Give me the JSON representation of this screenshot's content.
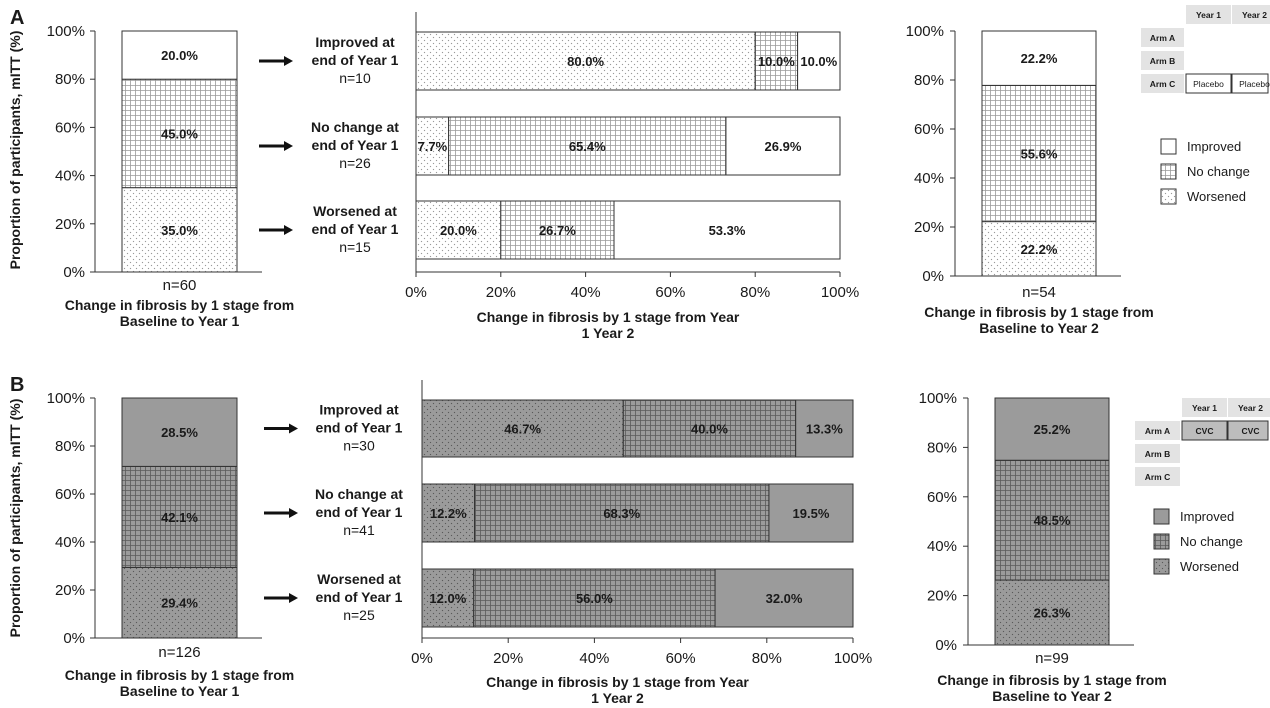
{
  "chart_data": [
    {
      "panel": "A",
      "colors": {
        "improved": "#ffffff",
        "no_change": "#ffffff",
        "worsened": "#ffffff",
        "pattern_stroke": "#9a9a9a"
      },
      "y_axis_label": "Proportion of participants, mITT (%)",
      "left": {
        "type": "bar",
        "stacked": true,
        "n_label": "n=60",
        "xlabel_lines": [
          "Change in fibrosis by 1 stage from",
          "Baseline to Year 1"
        ],
        "ylim": [
          0,
          100
        ],
        "yticks": [
          "0%",
          "20%",
          "40%",
          "60%",
          "80%",
          "100%"
        ],
        "segments": [
          {
            "category": "Worsened",
            "value": 35.0,
            "label": "35.0%"
          },
          {
            "category": "No change",
            "value": 45.0,
            "label": "45.0%"
          },
          {
            "category": "Improved",
            "value": 20.0,
            "label": "20.0%"
          }
        ]
      },
      "middle": {
        "type": "bar",
        "orientation": "horizontal",
        "stacked": true,
        "xlim": [
          0,
          100
        ],
        "xticks": [
          "0%",
          "20%",
          "40%",
          "60%",
          "80%",
          "100%"
        ],
        "xlabel_lines": [
          "Change in fibrosis by 1 stage from Year",
          "1 Year 2"
        ],
        "rows": [
          {
            "label_lines": [
              "Improved at",
              "end of Year 1"
            ],
            "n_label": "n=10",
            "segments": [
              {
                "category": "Worsened",
                "value": 80.0,
                "label": "80.0%"
              },
              {
                "category": "No change",
                "value": 10.0,
                "label": "10.0%"
              },
              {
                "category": "Improved",
                "value": 10.0,
                "label": "10.0%"
              }
            ]
          },
          {
            "label_lines": [
              "No change at",
              "end of Year 1"
            ],
            "n_label": "n=26",
            "segments": [
              {
                "category": "Worsened",
                "value": 7.7,
                "label": "7.7%"
              },
              {
                "category": "No change",
                "value": 65.4,
                "label": "65.4%"
              },
              {
                "category": "Improved",
                "value": 26.9,
                "label": "26.9%"
              }
            ]
          },
          {
            "label_lines": [
              "Worsened at",
              "end of Year 1"
            ],
            "n_label": "n=15",
            "segments": [
              {
                "category": "Worsened",
                "value": 20.0,
                "label": "20.0%"
              },
              {
                "category": "No change",
                "value": 26.7,
                "label": "26.7%"
              },
              {
                "category": "Improved",
                "value": 53.3,
                "label": "53.3%"
              }
            ]
          }
        ]
      },
      "right": {
        "type": "bar",
        "stacked": true,
        "n_label": "n=54",
        "xlabel_lines": [
          "Change in fibrosis by 1 stage from",
          "Baseline to Year 2"
        ],
        "ylim": [
          0,
          100
        ],
        "yticks": [
          "0%",
          "20%",
          "40%",
          "60%",
          "80%",
          "100%"
        ],
        "segments": [
          {
            "category": "Worsened",
            "value": 22.2,
            "label": "22.2%"
          },
          {
            "category": "No change",
            "value": 55.6,
            "label": "55.6%"
          },
          {
            "category": "Improved",
            "value": 22.2,
            "label": "22.2%"
          }
        ]
      },
      "arm_table": {
        "headers": [
          "Year 1",
          "Year 2"
        ],
        "arms": [
          {
            "label": "Arm A",
            "cells": [
              "",
              ""
            ]
          },
          {
            "label": "Arm B",
            "cells": [
              "",
              ""
            ]
          },
          {
            "label": "Arm C",
            "cells": [
              "Placebo",
              "Placebo"
            ]
          }
        ]
      },
      "legend": [
        {
          "key": "improved",
          "label": "Improved"
        },
        {
          "key": "no_change",
          "label": "No change"
        },
        {
          "key": "worsened",
          "label": "Worsened"
        }
      ]
    },
    {
      "panel": "B",
      "colors": {
        "improved": "#9b9b9b",
        "no_change": "#9b9b9b",
        "worsened": "#9b9b9b",
        "pattern_stroke": "#5a5a5a"
      },
      "y_axis_label": "Proportion of participants, mITT (%)",
      "left": {
        "type": "bar",
        "stacked": true,
        "n_label": "n=126",
        "xlabel_lines": [
          "Change in fibrosis by 1 stage from",
          "Baseline to Year 1"
        ],
        "ylim": [
          0,
          100
        ],
        "yticks": [
          "0%",
          "20%",
          "40%",
          "60%",
          "80%",
          "100%"
        ],
        "segments": [
          {
            "category": "Worsened",
            "value": 29.4,
            "label": "29.4%"
          },
          {
            "category": "No change",
            "value": 42.1,
            "label": "42.1%"
          },
          {
            "category": "Improved",
            "value": 28.5,
            "label": "28.5%"
          }
        ]
      },
      "middle": {
        "type": "bar",
        "orientation": "horizontal",
        "stacked": true,
        "xlim": [
          0,
          100
        ],
        "xticks": [
          "0%",
          "20%",
          "40%",
          "60%",
          "80%",
          "100%"
        ],
        "xlabel_lines": [
          "Change in fibrosis by 1 stage from Year",
          "1 Year 2"
        ],
        "rows": [
          {
            "label_lines": [
              "Improved at",
              "end of Year 1"
            ],
            "n_label": "n=30",
            "segments": [
              {
                "category": "Worsened",
                "value": 46.7,
                "label": "46.7%"
              },
              {
                "category": "No change",
                "value": 40.0,
                "label": "40.0%"
              },
              {
                "category": "Improved",
                "value": 13.3,
                "label": "13.3%"
              }
            ]
          },
          {
            "label_lines": [
              "No change at",
              "end of Year 1"
            ],
            "n_label": "n=41",
            "segments": [
              {
                "category": "Worsened",
                "value": 12.2,
                "label": "12.2%"
              },
              {
                "category": "No change",
                "value": 68.3,
                "label": "68.3%"
              },
              {
                "category": "Improved",
                "value": 19.5,
                "label": "19.5%"
              }
            ]
          },
          {
            "label_lines": [
              "Worsened at",
              "end of Year 1"
            ],
            "n_label": "n=25",
            "segments": [
              {
                "category": "Worsened",
                "value": 12.0,
                "label": "12.0%"
              },
              {
                "category": "No change",
                "value": 56.0,
                "label": "56.0%"
              },
              {
                "category": "Improved",
                "value": 32.0,
                "label": "32.0%"
              }
            ]
          }
        ]
      },
      "right": {
        "type": "bar",
        "stacked": true,
        "n_label": "n=99",
        "xlabel_lines": [
          "Change in fibrosis by 1 stage from",
          "Baseline to Year 2"
        ],
        "ylim": [
          0,
          100
        ],
        "yticks": [
          "0%",
          "20%",
          "40%",
          "60%",
          "80%",
          "100%"
        ],
        "segments": [
          {
            "category": "Worsened",
            "value": 26.3,
            "label": "26.3%"
          },
          {
            "category": "No change",
            "value": 48.5,
            "label": "48.5%"
          },
          {
            "category": "Improved",
            "value": 25.2,
            "label": "25.2%"
          }
        ]
      },
      "arm_table": {
        "headers": [
          "Year 1",
          "Year 2"
        ],
        "arms": [
          {
            "label": "Arm A",
            "cells": [
              "CVC",
              "CVC"
            ]
          },
          {
            "label": "Arm B",
            "cells": [
              "",
              ""
            ]
          },
          {
            "label": "Arm C",
            "cells": [
              "",
              ""
            ]
          }
        ]
      },
      "legend": [
        {
          "key": "improved",
          "label": "Improved"
        },
        {
          "key": "no_change",
          "label": "No change"
        },
        {
          "key": "worsened",
          "label": "Worsened"
        }
      ]
    }
  ]
}
